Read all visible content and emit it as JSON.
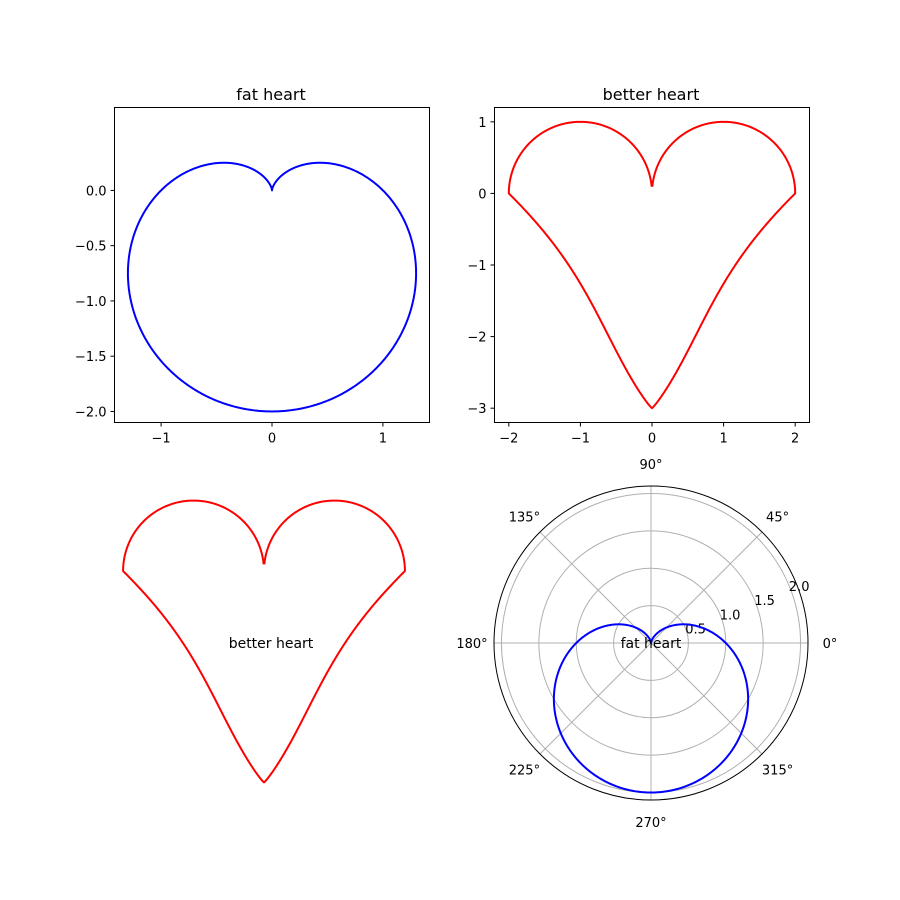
{
  "colors": {
    "blue": "#0000ff",
    "red": "#ff0000"
  },
  "chart_data": [
    {
      "type": "line",
      "title": "fat heart",
      "equation": "x = sin(t)·(1 - cos(t))·... , cardioid r = 1 - sin(theta)",
      "xlim": [
        -1.42,
        1.42
      ],
      "ylim": [
        -2.1,
        0.75
      ],
      "xticks": [
        -1,
        0,
        1
      ],
      "xtick_labels": [
        "−1",
        "0",
        "1"
      ],
      "yticks": [
        0.0,
        -0.5,
        -1.0,
        -1.5,
        -2.0
      ],
      "ytick_labels": [
        "0.0",
        "−0.5",
        "−1.0",
        "−1.5",
        "−2.0"
      ],
      "series": [
        {
          "color": "#0000ff",
          "kind": "cardioid_xy"
        }
      ]
    },
    {
      "type": "line",
      "title": "better heart",
      "xlim": [
        -2.2,
        2.2
      ],
      "ylim": [
        -3.2,
        1.2
      ],
      "xticks": [
        -2,
        -1,
        0,
        1,
        2
      ],
      "xtick_labels": [
        "−2",
        "−1",
        "0",
        "1",
        "2"
      ],
      "yticks": [
        1,
        0,
        -1,
        -2,
        -3
      ],
      "ytick_labels": [
        "1",
        "0",
        "−1",
        "−2",
        "−3"
      ],
      "series": [
        {
          "color": "#ff0000",
          "kind": "heart_xy"
        }
      ]
    },
    {
      "type": "line",
      "annotation": "better heart",
      "axis": "off",
      "series": [
        {
          "color": "#ff0000",
          "kind": "heart_xy"
        }
      ]
    },
    {
      "type": "polar",
      "annotation": "fat heart",
      "rlim": [
        0,
        2.1
      ],
      "rticks": [
        0.5,
        1.0,
        1.5,
        2.0
      ],
      "rtick_labels": [
        "0.5",
        "1.0",
        "1.5",
        "2.0"
      ],
      "theta_labels": [
        "0°",
        "45°",
        "90°",
        "135°",
        "180°",
        "225°",
        "270°",
        "315°"
      ],
      "series": [
        {
          "color": "#0000ff",
          "r_equation": "r = 1 - sin(theta)"
        }
      ]
    }
  ]
}
